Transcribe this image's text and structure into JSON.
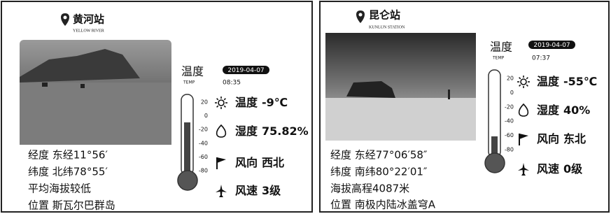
{
  "panels": [
    {
      "title": "黄河站",
      "subtitle": "YELLOW RIVER",
      "temp_label": "温度",
      "temp_sub": "TEMP",
      "date": "2019-04-07",
      "time": "08:35",
      "scale": [
        "20",
        "0",
        "-20",
        "-40",
        "-60",
        "-80"
      ],
      "readings": [
        {
          "label": "温度",
          "value": "-9℃"
        },
        {
          "label": "湿度",
          "value": "75.82%"
        },
        {
          "label": "风向",
          "value": "西北"
        },
        {
          "label": "风速",
          "value": "3级"
        }
      ],
      "info": [
        "经度  东经11°56′",
        "纬度  北纬78°55′",
        "平均海拔较低",
        "位置  斯瓦尔巴群岛"
      ]
    },
    {
      "title": "昆仑站",
      "subtitle": "KUNLUN STATION",
      "temp_label": "温度",
      "temp_sub": "TEMP",
      "date": "2019-04-07",
      "time": "07:37",
      "scale": [
        "20",
        "0",
        "-20",
        "-40",
        "-60",
        "-80"
      ],
      "readings": [
        {
          "label": "温度",
          "value": "-55℃"
        },
        {
          "label": "湿度",
          "value": "40%"
        },
        {
          "label": "风向",
          "value": "东北"
        },
        {
          "label": "风速",
          "value": "0级"
        }
      ],
      "info": [
        "经度  东经77°06′58″",
        "纬度  南纬80°22′01″",
        "海拔高程4087米",
        "位置  南极内陆冰盖穹A"
      ]
    }
  ]
}
